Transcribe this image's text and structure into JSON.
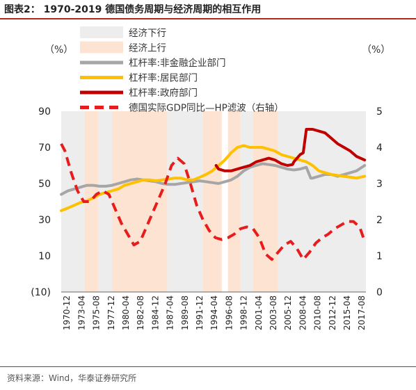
{
  "header": {
    "title": "图表2：  1970-2019 德国债务周期与经济周期的相互作用"
  },
  "footer": {
    "source": "资料来源：Wind，华泰证券研究所"
  },
  "colors": {
    "downturn_band": "#ededed",
    "upturn_band": "#fde3d2",
    "nonfin_corp": "#a6a6a6",
    "household": "#ffc000",
    "government": "#c00000",
    "gdp": "#e81c1c",
    "negative_label": "#c00000"
  },
  "chart_data": {
    "type": "line",
    "unit_left": "（%）",
    "unit_right": "（%）",
    "y_left": {
      "range": [
        -10,
        90
      ],
      "ticks": [
        "(10)",
        "10",
        "30",
        "50",
        "70",
        "90"
      ],
      "tick_values": [
        -10,
        10,
        30,
        50,
        70,
        90
      ]
    },
    "y_right": {
      "range": [
        0,
        5
      ],
      "ticks": [
        "0",
        "1",
        "2",
        "3",
        "4",
        "5"
      ],
      "tick_values": [
        0,
        1,
        2,
        3,
        4,
        5
      ]
    },
    "x_ticks": [
      "1970-12",
      "1973-04",
      "1975-08",
      "1977-12",
      "1980-04",
      "1982-08",
      "1984-12",
      "1987-04",
      "1989-08",
      "1991-12",
      "1994-04",
      "1996-08",
      "1998-12",
      "2001-04",
      "2003-08",
      "2005-12",
      "2008-04",
      "2010-08",
      "2012-12",
      "2015-04",
      "2017-08"
    ],
    "x_range": [
      1970.9,
      2019.5
    ],
    "legend": [
      {
        "label": "经济下行",
        "kind": "band",
        "color_key": "downturn_band"
      },
      {
        "label": "经济上行",
        "kind": "band",
        "color_key": "upturn_band"
      },
      {
        "label": "杠杆率:非金融企业部门",
        "kind": "line",
        "color_key": "nonfin_corp"
      },
      {
        "label": "杠杆率:居民部门",
        "kind": "line",
        "color_key": "household"
      },
      {
        "label": "杠杆率:政府部门",
        "kind": "line",
        "color_key": "government"
      },
      {
        "label": "德国实际GDP同比—HP滤波（右轴）",
        "kind": "dash",
        "color_key": "gdp"
      }
    ],
    "downturn_bands": [
      [
        1970.9,
        1974.6
      ],
      [
        1976.8,
        1979.0
      ],
      [
        1987.8,
        1993.5
      ],
      [
        1999.5,
        2001.5
      ],
      [
        2005.5,
        2019.5
      ]
    ],
    "upturn_bands": [
      [
        1974.6,
        1976.8
      ],
      [
        1979.0,
        1987.8
      ],
      [
        1993.5,
        1996.5
      ],
      [
        1997.5,
        1999.5
      ],
      [
        2001.5,
        2005.5
      ]
    ],
    "series": [
      {
        "name": "杠杆率:非金融企业部门",
        "color_key": "nonfin_corp",
        "axis": "left",
        "width": 4,
        "dash": false,
        "x": [
          1970.9,
          1972,
          1973,
          1974,
          1975,
          1976,
          1977,
          1978,
          1979,
          1980,
          1981,
          1982,
          1983,
          1984,
          1985,
          1986,
          1987,
          1988,
          1989,
          1990,
          1991,
          1992,
          1993,
          1994,
          1995,
          1996,
          1997,
          1998,
          1999,
          2000,
          2001,
          2002,
          2003,
          2004,
          2005,
          2006,
          2007,
          2008,
          2009,
          2010,
          2010.7,
          2011,
          2012,
          2013,
          2014,
          2015,
          2016,
          2017,
          2018,
          2019.3
        ],
        "y": [
          44,
          46,
          47,
          48,
          49,
          49,
          48.5,
          48.5,
          49,
          50,
          51,
          52,
          52.5,
          52,
          51.5,
          51,
          50,
          49.5,
          49.5,
          50,
          50.5,
          51,
          51.5,
          51,
          50.5,
          50,
          51,
          52,
          54,
          57,
          59,
          60,
          61,
          60.5,
          60,
          59,
          58,
          57.5,
          58,
          59,
          53,
          53,
          54,
          55,
          55,
          54,
          55,
          56,
          57,
          60
        ]
      },
      {
        "name": "杠杆率:居民部门",
        "color_key": "household",
        "axis": "left",
        "width": 4,
        "dash": false,
        "x": [
          1970.9,
          1972,
          1973,
          1974,
          1975,
          1976,
          1977,
          1978,
          1979,
          1980,
          1981,
          1982,
          1983,
          1984,
          1985,
          1986,
          1987,
          1988,
          1989,
          1990,
          1991,
          1992,
          1993,
          1994,
          1995,
          1996,
          1997,
          1998,
          1999,
          2000,
          2001,
          2002,
          2003,
          2004,
          2005,
          2006,
          2007,
          2008,
          2009,
          2010,
          2011,
          2012,
          2013,
          2014,
          2015,
          2016,
          2017,
          2018,
          2019.3
        ],
        "y": [
          35,
          36.5,
          38,
          39.5,
          40.5,
          42,
          44,
          45,
          46,
          47,
          49,
          50,
          51,
          52,
          52,
          51.5,
          52,
          52.5,
          53,
          53,
          52,
          52,
          53.5,
          55,
          57,
          60,
          63,
          67,
          70,
          71,
          70,
          70,
          70,
          69,
          68,
          66,
          65,
          64,
          63,
          62,
          60,
          57,
          56,
          55,
          54.5,
          54,
          53.5,
          53,
          54
        ]
      },
      {
        "name": "杠杆率:政府部门",
        "color_key": "government",
        "axis": "left",
        "width": 4,
        "dash": false,
        "x": [
          1995.6,
          1996,
          1997,
          1998,
          1999,
          2000,
          2001,
          2002,
          2003,
          2004,
          2005,
          2006,
          2007,
          2007.8,
          2008,
          2009,
          2009.5,
          2010,
          2011,
          2012,
          2013,
          2014,
          2015,
          2016,
          2017,
          2018,
          2019.3
        ],
        "y": [
          60,
          58,
          57,
          57,
          58,
          59,
          60,
          62,
          63,
          64,
          63,
          61,
          60,
          60.5,
          62,
          66,
          67,
          80,
          80,
          79,
          78,
          75,
          72,
          70,
          68,
          65,
          63
        ]
      },
      {
        "name": "德国实际GDP同比—HP滤波（右轴）",
        "color_key": "gdp",
        "axis": "right",
        "width": 4,
        "dash": true,
        "x": [
          1970.9,
          1971.5,
          1972.5,
          1973.5,
          1974.5,
          1975.5,
          1976.5,
          1977.5,
          1978.5,
          1979.5,
          1980.5,
          1981.5,
          1982.5,
          1983.5,
          1984.5,
          1985.5,
          1986.5,
          1987.5,
          1988.5,
          1989.5,
          1990.5,
          1991.5,
          1992.5,
          1993.5,
          1994.5,
          1995.5,
          1996.5,
          1997.5,
          1998.5,
          1999.5,
          2000.5,
          2001.5,
          2002.5,
          2003.5,
          2004.5,
          2005.5,
          2006.5,
          2007.5,
          2008.5,
          2009.5,
          2010.5,
          2011.5,
          2012.5,
          2013.5,
          2014.5,
          2015.5,
          2016.5,
          2017.5,
          2018.5,
          2019.3
        ],
        "y": [
          4.1,
          3.9,
          3.3,
          2.8,
          2.5,
          2.5,
          2.7,
          2.8,
          2.7,
          2.3,
          1.9,
          1.6,
          1.3,
          1.4,
          1.8,
          2.2,
          2.6,
          3.0,
          3.5,
          3.7,
          3.55,
          3.0,
          2.4,
          2.0,
          1.7,
          1.5,
          1.45,
          1.5,
          1.6,
          1.75,
          1.8,
          1.75,
          1.5,
          1.05,
          0.9,
          1.1,
          1.3,
          1.4,
          1.2,
          0.9,
          1.1,
          1.35,
          1.5,
          1.6,
          1.75,
          1.85,
          1.95,
          1.95,
          1.8,
          1.4
        ]
      }
    ]
  }
}
